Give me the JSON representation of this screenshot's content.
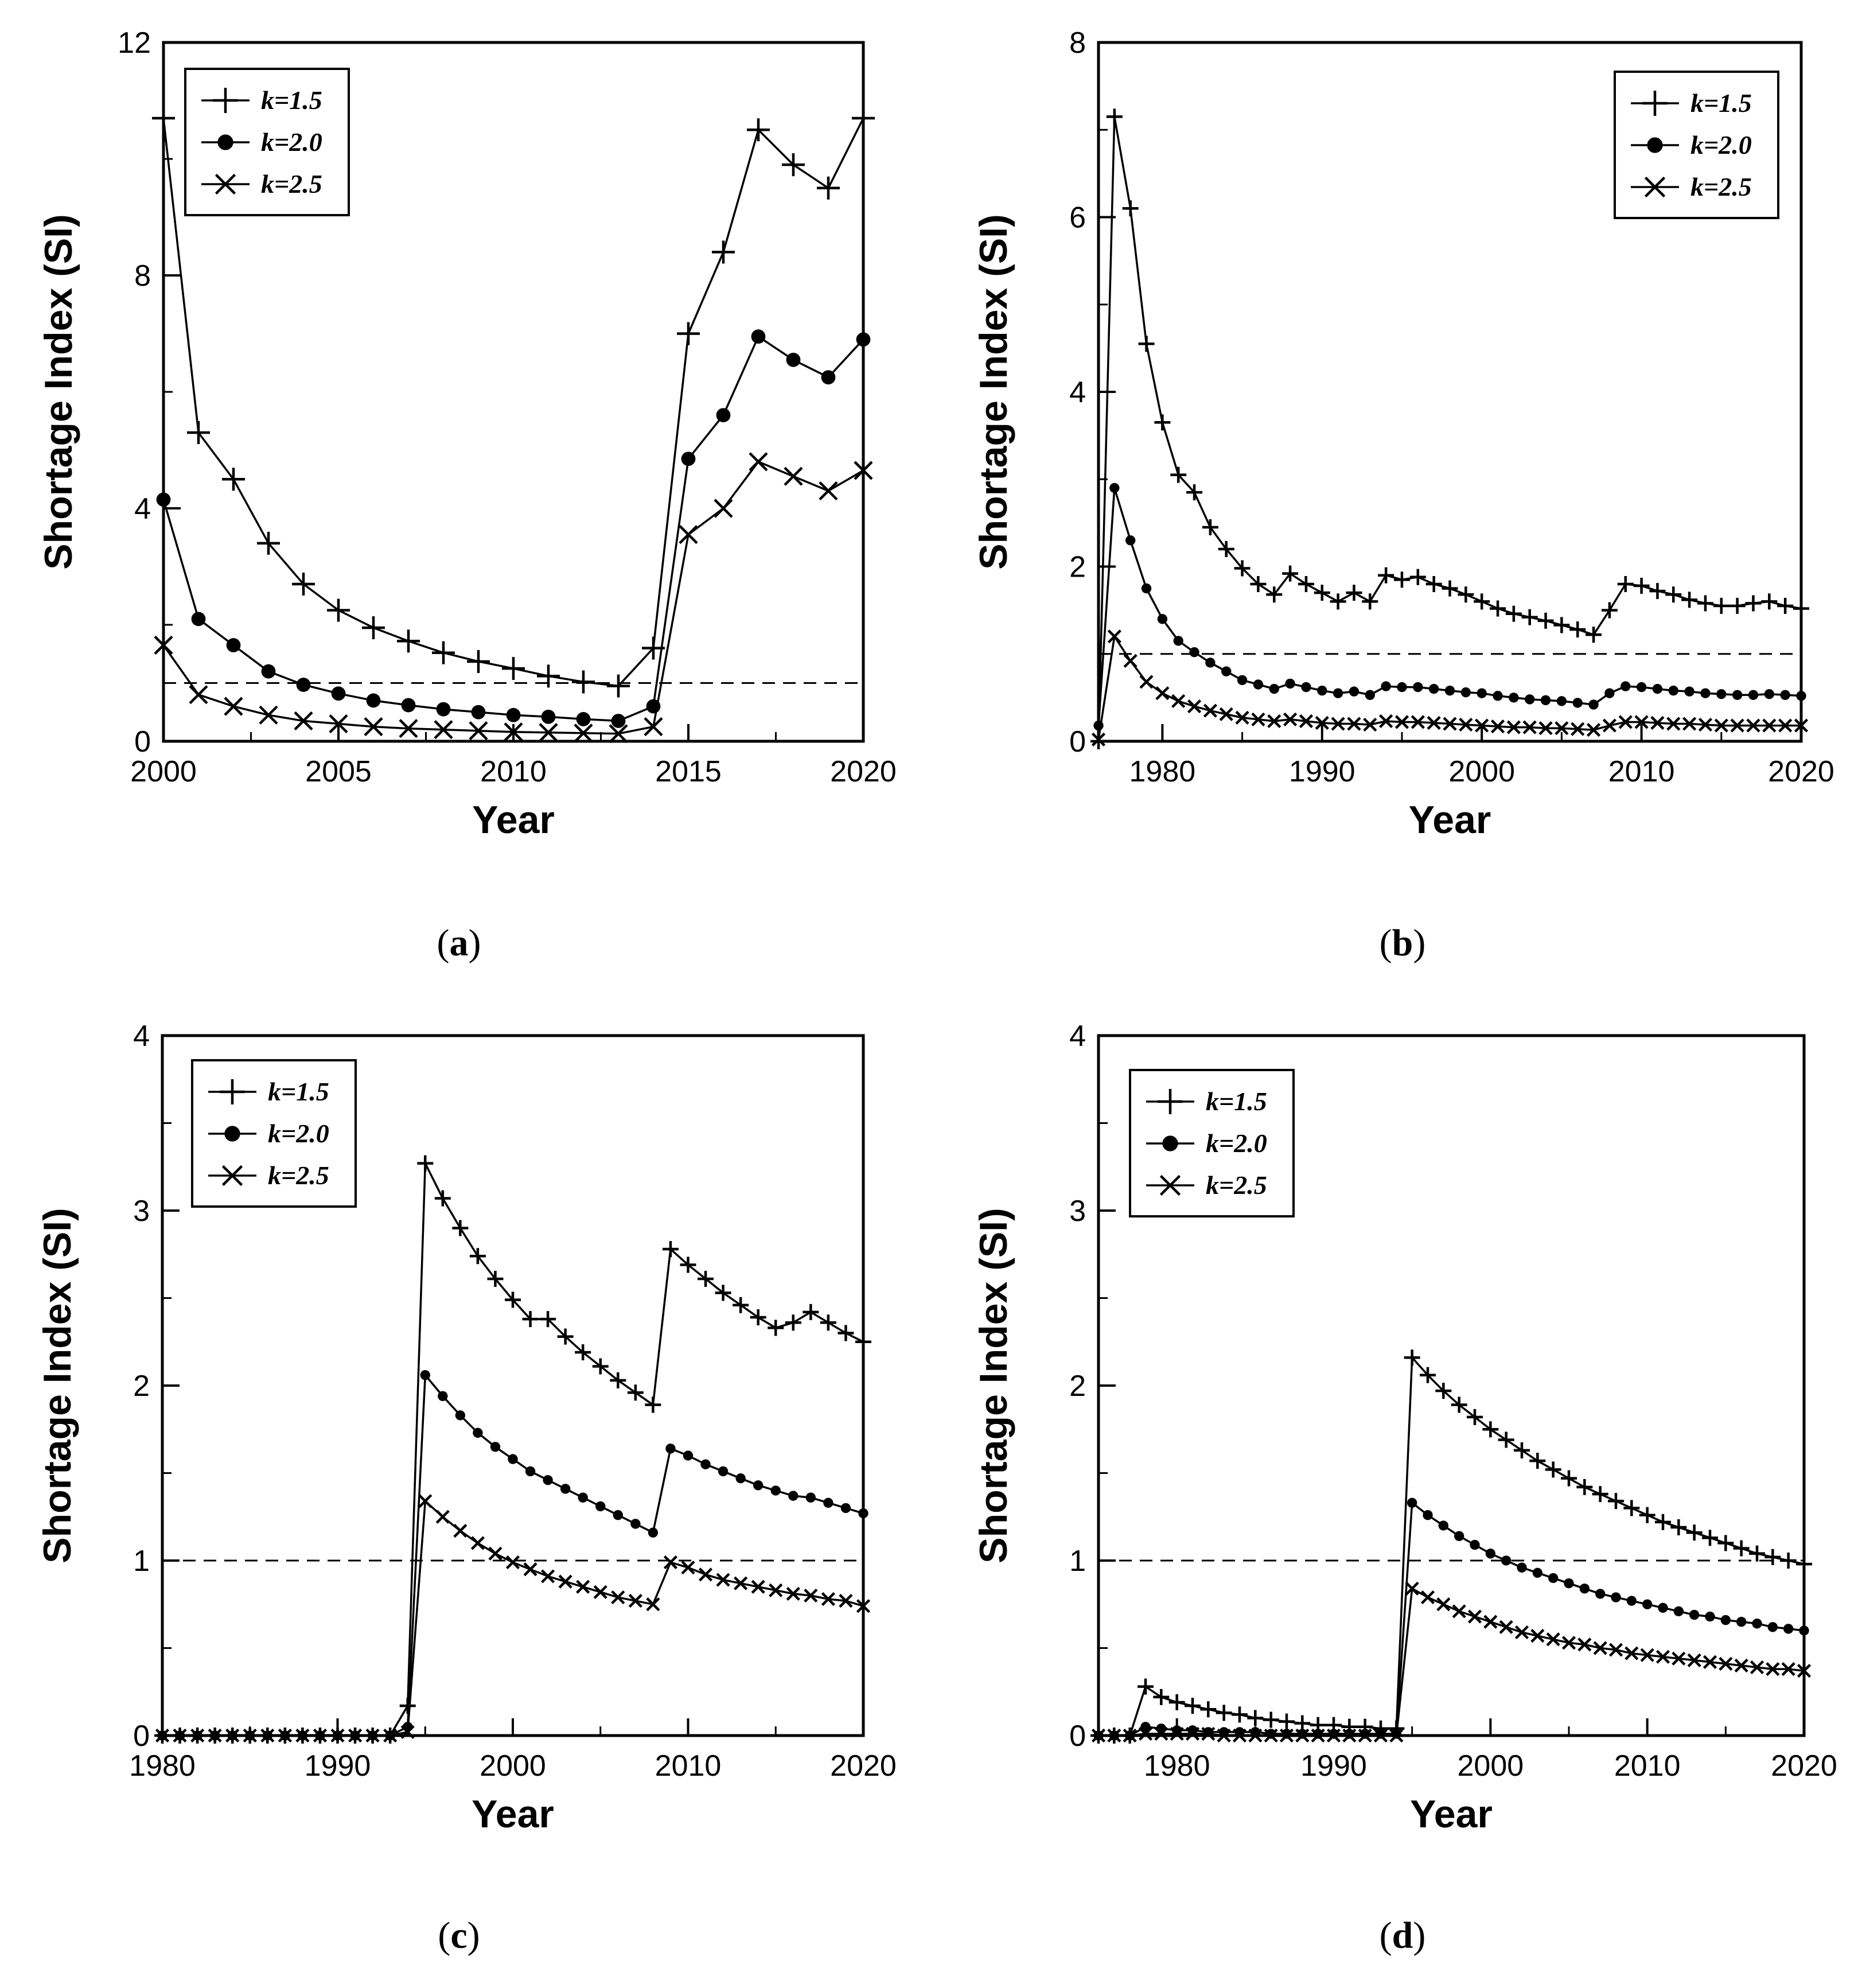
{
  "figure": {
    "ylabel": "Shortage Index (SI)",
    "xlabel": "Year",
    "threshold": 1,
    "legend": [
      "k=1.5",
      "k=2.0",
      "k=2.5"
    ],
    "marker_types": [
      "plus",
      "circle",
      "cross"
    ]
  },
  "chart_data": [
    {
      "type": "line",
      "panel": "(a)",
      "xlabel": "Year",
      "ylabel": "Shortage Index (SI)",
      "xlim": [
        2000,
        2020
      ],
      "ylim": [
        0,
        12
      ],
      "xticks": [
        2000,
        2005,
        2010,
        2015,
        2020
      ],
      "yticks": [
        0,
        4,
        8,
        12
      ],
      "legend_position": "top-left",
      "threshold": 1,
      "x": [
        2000,
        2001,
        2002,
        2003,
        2004,
        2005,
        2006,
        2007,
        2008,
        2009,
        2010,
        2011,
        2012,
        2013,
        2014,
        2015,
        2016,
        2017,
        2018,
        2019,
        2020
      ],
      "series": [
        {
          "name": "k=1.5",
          "values": [
            10.7,
            5.3,
            4.5,
            3.4,
            2.7,
            2.25,
            1.95,
            1.72,
            1.52,
            1.37,
            1.25,
            1.12,
            1.02,
            0.95,
            1.6,
            7.0,
            8.4,
            10.5,
            9.9,
            9.5,
            10.7
          ]
        },
        {
          "name": "k=2.0",
          "values": [
            4.15,
            2.1,
            1.65,
            1.2,
            0.97,
            0.82,
            0.7,
            0.62,
            0.55,
            0.5,
            0.45,
            0.42,
            0.38,
            0.35,
            0.6,
            4.85,
            5.6,
            6.95,
            6.55,
            6.25,
            6.9
          ]
        },
        {
          "name": "k=2.5",
          "values": [
            1.65,
            0.8,
            0.6,
            0.45,
            0.35,
            0.3,
            0.25,
            0.22,
            0.2,
            0.18,
            0.16,
            0.15,
            0.14,
            0.13,
            0.25,
            3.55,
            4.0,
            4.8,
            4.55,
            4.3,
            4.65
          ]
        }
      ]
    },
    {
      "type": "line",
      "panel": "(b)",
      "xlabel": "Year",
      "ylabel": "Shortage Index (SI)",
      "xlim": [
        1976,
        2020
      ],
      "ylim": [
        0,
        8
      ],
      "xticks": [
        1980,
        1990,
        2000,
        2010,
        2020
      ],
      "yticks": [
        0,
        2,
        4,
        6,
        8
      ],
      "legend_position": "top-right",
      "threshold": 1,
      "x": [
        1976,
        1977,
        1978,
        1979,
        1980,
        1981,
        1982,
        1983,
        1984,
        1985,
        1986,
        1987,
        1988,
        1989,
        1990,
        1991,
        1992,
        1993,
        1994,
        1995,
        1996,
        1997,
        1998,
        1999,
        2000,
        2001,
        2002,
        2003,
        2004,
        2005,
        2006,
        2007,
        2008,
        2009,
        2010,
        2011,
        2012,
        2013,
        2014,
        2015,
        2016,
        2017,
        2018,
        2019,
        2020
      ],
      "series": [
        {
          "name": "k=1.5",
          "values": [
            0.0,
            7.15,
            6.1,
            4.55,
            3.65,
            3.05,
            2.85,
            2.45,
            2.2,
            1.98,
            1.8,
            1.68,
            1.92,
            1.8,
            1.7,
            1.6,
            1.7,
            1.6,
            1.9,
            1.85,
            1.88,
            1.8,
            1.75,
            1.68,
            1.6,
            1.52,
            1.46,
            1.42,
            1.38,
            1.33,
            1.28,
            1.22,
            1.5,
            1.8,
            1.78,
            1.72,
            1.68,
            1.62,
            1.58,
            1.55,
            1.55,
            1.58,
            1.6,
            1.55,
            1.52
          ]
        },
        {
          "name": "k=2.0",
          "values": [
            0.18,
            2.9,
            2.3,
            1.75,
            1.4,
            1.15,
            1.02,
            0.9,
            0.8,
            0.7,
            0.65,
            0.6,
            0.66,
            0.62,
            0.58,
            0.55,
            0.57,
            0.53,
            0.63,
            0.62,
            0.62,
            0.6,
            0.58,
            0.56,
            0.55,
            0.52,
            0.5,
            0.48,
            0.47,
            0.46,
            0.44,
            0.42,
            0.55,
            0.63,
            0.62,
            0.6,
            0.58,
            0.57,
            0.55,
            0.54,
            0.53,
            0.53,
            0.54,
            0.53,
            0.52
          ]
        },
        {
          "name": "k=2.5",
          "values": [
            0.02,
            1.2,
            0.92,
            0.68,
            0.55,
            0.46,
            0.4,
            0.35,
            0.31,
            0.27,
            0.25,
            0.23,
            0.25,
            0.23,
            0.21,
            0.2,
            0.2,
            0.19,
            0.23,
            0.22,
            0.22,
            0.21,
            0.2,
            0.19,
            0.18,
            0.17,
            0.16,
            0.16,
            0.15,
            0.15,
            0.14,
            0.13,
            0.18,
            0.22,
            0.22,
            0.21,
            0.2,
            0.2,
            0.19,
            0.18,
            0.18,
            0.18,
            0.18,
            0.18,
            0.18
          ]
        }
      ]
    },
    {
      "type": "line",
      "panel": "(c)",
      "xlabel": "Year",
      "ylabel": "Shortage Index (SI)",
      "xlim": [
        1980,
        2020
      ],
      "ylim": [
        0,
        4
      ],
      "xticks": [
        1980,
        1990,
        2000,
        2010,
        2020
      ],
      "yticks": [
        0,
        1,
        2,
        3,
        4
      ],
      "legend_position": "top-left",
      "threshold": 1,
      "x": [
        1980,
        1981,
        1982,
        1983,
        1984,
        1985,
        1986,
        1987,
        1988,
        1989,
        1990,
        1991,
        1992,
        1993,
        1994,
        1995,
        1996,
        1997,
        1998,
        1999,
        2000,
        2001,
        2002,
        2003,
        2004,
        2005,
        2006,
        2007,
        2008,
        2009,
        2010,
        2011,
        2012,
        2013,
        2014,
        2015,
        2016,
        2017,
        2018,
        2019,
        2020
      ],
      "series": [
        {
          "name": "k=1.5",
          "values": [
            0,
            0,
            0,
            0,
            0,
            0,
            0,
            0,
            0,
            0,
            0,
            0,
            0,
            0,
            0.17,
            3.27,
            3.07,
            2.9,
            2.74,
            2.61,
            2.49,
            2.38,
            2.38,
            2.28,
            2.19,
            2.11,
            2.03,
            1.96,
            1.89,
            2.78,
            2.69,
            2.61,
            2.53,
            2.46,
            2.39,
            2.33,
            2.36,
            2.42,
            2.36,
            2.3,
            2.25
          ]
        },
        {
          "name": "k=2.0",
          "values": [
            0,
            0,
            0,
            0,
            0,
            0,
            0,
            0,
            0,
            0,
            0,
            0,
            0,
            0,
            0.05,
            2.06,
            1.94,
            1.83,
            1.73,
            1.65,
            1.58,
            1.51,
            1.46,
            1.41,
            1.36,
            1.31,
            1.26,
            1.21,
            1.16,
            1.64,
            1.6,
            1.55,
            1.51,
            1.47,
            1.43,
            1.4,
            1.37,
            1.36,
            1.33,
            1.3,
            1.27
          ]
        },
        {
          "name": "k=2.5",
          "values": [
            0,
            0,
            0,
            0,
            0,
            0,
            0,
            0,
            0,
            0,
            0,
            0,
            0,
            0,
            0.02,
            1.34,
            1.25,
            1.17,
            1.1,
            1.04,
            0.99,
            0.95,
            0.91,
            0.88,
            0.85,
            0.82,
            0.79,
            0.77,
            0.75,
            0.99,
            0.96,
            0.92,
            0.89,
            0.87,
            0.85,
            0.83,
            0.81,
            0.8,
            0.78,
            0.77,
            0.74
          ]
        }
      ]
    },
    {
      "type": "line",
      "panel": "(d)",
      "xlabel": "Year",
      "ylabel": "Shortage Index (SI)",
      "xlim": [
        1975,
        2020
      ],
      "ylim": [
        0,
        4
      ],
      "xticks": [
        1980,
        1990,
        2000,
        2010,
        2020
      ],
      "yticks": [
        0,
        1,
        2,
        3,
        4
      ],
      "legend_position": "top-left",
      "threshold": 1,
      "x": [
        1975,
        1976,
        1977,
        1978,
        1979,
        1980,
        1981,
        1982,
        1983,
        1984,
        1985,
        1986,
        1987,
        1988,
        1989,
        1990,
        1991,
        1992,
        1993,
        1994,
        1995,
        1996,
        1997,
        1998,
        1999,
        2000,
        2001,
        2002,
        2003,
        2004,
        2005,
        2006,
        2007,
        2008,
        2009,
        2010,
        2011,
        2012,
        2013,
        2014,
        2015,
        2016,
        2017,
        2018,
        2019,
        2020
      ],
      "series": [
        {
          "name": "k=1.5",
          "values": [
            0,
            0,
            0,
            0.28,
            0.22,
            0.19,
            0.17,
            0.15,
            0.13,
            0.12,
            0.1,
            0.09,
            0.08,
            0.07,
            0.06,
            0.06,
            0.05,
            0.05,
            0.04,
            0.04,
            2.16,
            2.06,
            1.97,
            1.89,
            1.82,
            1.75,
            1.69,
            1.63,
            1.57,
            1.52,
            1.47,
            1.42,
            1.38,
            1.34,
            1.3,
            1.26,
            1.22,
            1.19,
            1.16,
            1.13,
            1.1,
            1.07,
            1.04,
            1.02,
            1.0,
            0.98
          ]
        },
        {
          "name": "k=2.0",
          "values": [
            0,
            0,
            0,
            0.05,
            0.04,
            0.03,
            0.03,
            0.02,
            0.02,
            0.02,
            0.02,
            0.01,
            0.01,
            0.01,
            0.01,
            0.01,
            0.01,
            0.01,
            0.01,
            0.01,
            1.33,
            1.26,
            1.2,
            1.14,
            1.09,
            1.04,
            1.0,
            0.96,
            0.93,
            0.9,
            0.87,
            0.84,
            0.81,
            0.79,
            0.77,
            0.75,
            0.73,
            0.71,
            0.69,
            0.68,
            0.66,
            0.65,
            0.64,
            0.62,
            0.61,
            0.6
          ]
        },
        {
          "name": "k=2.5",
          "values": [
            0,
            0,
            0,
            0.01,
            0.01,
            0.01,
            0.01,
            0.01,
            0,
            0,
            0,
            0,
            0,
            0,
            0,
            0,
            0,
            0,
            0,
            0,
            0.84,
            0.79,
            0.75,
            0.71,
            0.68,
            0.65,
            0.62,
            0.59,
            0.57,
            0.55,
            0.53,
            0.52,
            0.5,
            0.49,
            0.47,
            0.46,
            0.45,
            0.44,
            0.43,
            0.42,
            0.41,
            0.4,
            0.39,
            0.38,
            0.38,
            0.37
          ]
        }
      ]
    }
  ]
}
